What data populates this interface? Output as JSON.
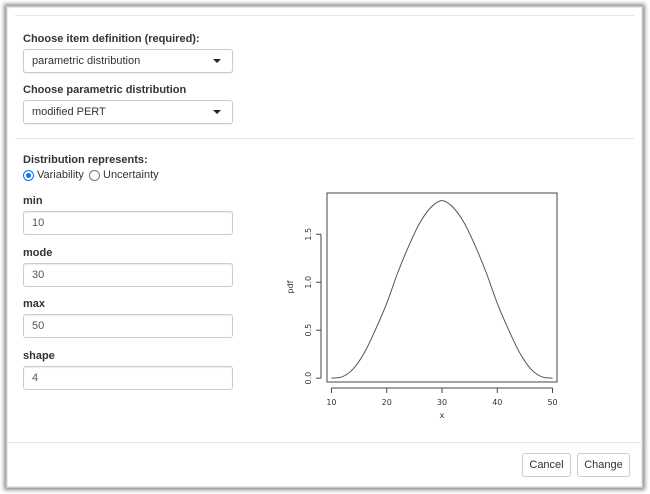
{
  "form": {
    "item_definition_label": "Choose item definition (required):",
    "item_definition_value": "parametric distribution",
    "distribution_label": "Choose parametric distribution",
    "distribution_value": "modified PERT",
    "represents_label": "Distribution represents:",
    "represents_options": [
      {
        "label": "Variability",
        "checked": true
      },
      {
        "label": "Uncertainty",
        "checked": false
      }
    ],
    "fields": [
      {
        "label": "min",
        "value": "10"
      },
      {
        "label": "mode",
        "value": "30"
      },
      {
        "label": "max",
        "value": "50"
      },
      {
        "label": "shape",
        "value": "4"
      }
    ]
  },
  "buttons": {
    "cancel": "Cancel",
    "change": "Change"
  },
  "chart_data": {
    "type": "line",
    "title": "",
    "xlabel": "x",
    "ylabel": "pdf",
    "xlim": [
      9.2,
      50.8
    ],
    "ylim": [
      -0.04,
      1.93
    ],
    "x_ticks": [
      10,
      20,
      30,
      40,
      50
    ],
    "y_ticks": [
      0.0,
      0.5,
      1.0,
      1.5
    ],
    "x_tick_labels": [
      "10",
      "20",
      "30",
      "40",
      "50"
    ],
    "y_tick_labels": [
      "0.0",
      "0.5",
      "1.0",
      "1.5"
    ],
    "grid": false,
    "series": [
      {
        "x": [
          10,
          12,
          14,
          16,
          18,
          20,
          22,
          24,
          26,
          28,
          30,
          32,
          34,
          36,
          38,
          40,
          42,
          44,
          46,
          48,
          50
        ],
        "y": [
          0.0,
          0.015,
          0.1,
          0.27,
          0.51,
          0.78,
          1.1,
          1.38,
          1.62,
          1.78,
          1.85,
          1.78,
          1.62,
          1.38,
          1.1,
          0.78,
          0.51,
          0.27,
          0.1,
          0.015,
          0.0
        ]
      }
    ]
  }
}
